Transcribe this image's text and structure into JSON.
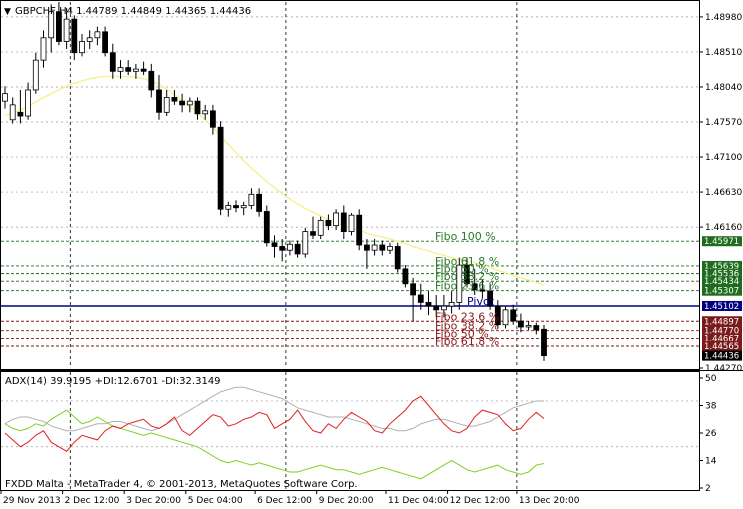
{
  "header": {
    "main_title": "GBPCHF,H4  1.44789 1.44849 1.44365 1.44436",
    "adx_title": "ADX(14) 39.9195 +DI:12.6701 -DI:32.3149",
    "footer_text": "FXDD Malta - MetaTrader 4, © 2001-2013, MetaQuotes Software Corp."
  },
  "colors": {
    "background": "#ffffff",
    "candle_up_fill": "#ffffff",
    "candle_down_fill": "#000000",
    "candle_outline": "#000000",
    "ma_line": "#f5f08a",
    "grid": "#9a9a9a",
    "fibo_green": "#1f6b1f",
    "fibo_red": "#7a1a1a",
    "pivot": "#000080",
    "current_price_box": "#000000",
    "adx_line": "#b0b0b0",
    "plus_di": "#7ed020",
    "minus_di": "#e02020"
  },
  "chart_data": [
    {
      "type": "candlestick",
      "title": "GBPCHF,H4",
      "ohlc_readout": {
        "open": 1.44789,
        "high": 1.44849,
        "low": 1.44365,
        "close": 1.44436
      },
      "x_tick_labels": [
        "29 Nov 2013",
        "2 Dec 12:00",
        "3 Dec 20:00",
        "5 Dec 04:00",
        "6 Dec 12:00",
        "9 Dec 20:00",
        "11 Dec 04:00",
        "12 Dec 12:00",
        "13 Dec 20:00"
      ],
      "y_ticks": [
        "1.48980",
        "1.48510",
        "1.48040",
        "1.47570",
        "1.47100",
        "1.46630",
        "1.46160",
        "1.44270"
      ],
      "ylim": [
        1.4427,
        1.4918
      ],
      "grid": true,
      "candles": [
        {
          "o": 1.4785,
          "h": 1.4805,
          "l": 1.4775,
          "c": 1.4795
        },
        {
          "o": 1.476,
          "h": 1.479,
          "l": 1.4755,
          "c": 1.478
        },
        {
          "o": 1.477,
          "h": 1.48,
          "l": 1.4755,
          "c": 1.4765
        },
        {
          "o": 1.4765,
          "h": 1.481,
          "l": 1.476,
          "c": 1.48
        },
        {
          "o": 1.48,
          "h": 1.485,
          "l": 1.4795,
          "c": 1.484
        },
        {
          "o": 1.484,
          "h": 1.488,
          "l": 1.483,
          "c": 1.487
        },
        {
          "o": 1.487,
          "h": 1.4915,
          "l": 1.485,
          "c": 1.4905
        },
        {
          "o": 1.4905,
          "h": 1.4918,
          "l": 1.486,
          "c": 1.4865
        },
        {
          "o": 1.4865,
          "h": 1.491,
          "l": 1.4855,
          "c": 1.4895
        },
        {
          "o": 1.4895,
          "h": 1.49,
          "l": 1.484,
          "c": 1.485
        },
        {
          "o": 1.485,
          "h": 1.4875,
          "l": 1.4845,
          "c": 1.4865
        },
        {
          "o": 1.4865,
          "h": 1.488,
          "l": 1.4855,
          "c": 1.487
        },
        {
          "o": 1.487,
          "h": 1.4885,
          "l": 1.486,
          "c": 1.4878
        },
        {
          "o": 1.4878,
          "h": 1.4885,
          "l": 1.4845,
          "c": 1.485
        },
        {
          "o": 1.485,
          "h": 1.4862,
          "l": 1.4815,
          "c": 1.4825
        },
        {
          "o": 1.4825,
          "h": 1.484,
          "l": 1.4815,
          "c": 1.483
        },
        {
          "o": 1.483,
          "h": 1.484,
          "l": 1.482,
          "c": 1.4825
        },
        {
          "o": 1.4825,
          "h": 1.4835,
          "l": 1.4815,
          "c": 1.4828
        },
        {
          "o": 1.4828,
          "h": 1.4838,
          "l": 1.482,
          "c": 1.4825
        },
        {
          "o": 1.4825,
          "h": 1.4835,
          "l": 1.479,
          "c": 1.48
        },
        {
          "o": 1.48,
          "h": 1.482,
          "l": 1.476,
          "c": 1.477
        },
        {
          "o": 1.477,
          "h": 1.48,
          "l": 1.4765,
          "c": 1.479
        },
        {
          "o": 1.479,
          "h": 1.48,
          "l": 1.478,
          "c": 1.4785
        },
        {
          "o": 1.4785,
          "h": 1.4795,
          "l": 1.477,
          "c": 1.478
        },
        {
          "o": 1.478,
          "h": 1.479,
          "l": 1.477,
          "c": 1.4785
        },
        {
          "o": 1.4785,
          "h": 1.479,
          "l": 1.476,
          "c": 1.4768
        },
        {
          "o": 1.4768,
          "h": 1.478,
          "l": 1.476,
          "c": 1.4772
        },
        {
          "o": 1.4772,
          "h": 1.478,
          "l": 1.474,
          "c": 1.475
        },
        {
          "o": 1.475,
          "h": 1.4758,
          "l": 1.4632,
          "c": 1.464
        },
        {
          "o": 1.464,
          "h": 1.465,
          "l": 1.463,
          "c": 1.4645
        },
        {
          "o": 1.4645,
          "h": 1.4652,
          "l": 1.4636,
          "c": 1.4642
        },
        {
          "o": 1.4642,
          "h": 1.465,
          "l": 1.4632,
          "c": 1.4645
        },
        {
          "o": 1.4645,
          "h": 1.4668,
          "l": 1.464,
          "c": 1.466
        },
        {
          "o": 1.466,
          "h": 1.4668,
          "l": 1.463,
          "c": 1.4637
        },
        {
          "o": 1.4637,
          "h": 1.4645,
          "l": 1.459,
          "c": 1.4595
        },
        {
          "o": 1.4595,
          "h": 1.4605,
          "l": 1.4575,
          "c": 1.459
        },
        {
          "o": 1.459,
          "h": 1.46,
          "l": 1.457,
          "c": 1.4585
        },
        {
          "o": 1.4585,
          "h": 1.4598,
          "l": 1.4578,
          "c": 1.4593
        },
        {
          "o": 1.4593,
          "h": 1.4598,
          "l": 1.4575,
          "c": 1.458
        },
        {
          "o": 1.458,
          "h": 1.4615,
          "l": 1.4575,
          "c": 1.461
        },
        {
          "o": 1.461,
          "h": 1.463,
          "l": 1.46,
          "c": 1.4605
        },
        {
          "o": 1.4605,
          "h": 1.463,
          "l": 1.46,
          "c": 1.4625
        },
        {
          "o": 1.4625,
          "h": 1.4633,
          "l": 1.4612,
          "c": 1.4618
        },
        {
          "o": 1.4618,
          "h": 1.464,
          "l": 1.4612,
          "c": 1.4635
        },
        {
          "o": 1.4635,
          "h": 1.4645,
          "l": 1.46,
          "c": 1.461
        },
        {
          "o": 1.461,
          "h": 1.4635,
          "l": 1.4605,
          "c": 1.4632
        },
        {
          "o": 1.4632,
          "h": 1.464,
          "l": 1.4585,
          "c": 1.4592
        },
        {
          "o": 1.4592,
          "h": 1.46,
          "l": 1.456,
          "c": 1.4585
        },
        {
          "o": 1.4585,
          "h": 1.46,
          "l": 1.4578,
          "c": 1.4592
        },
        {
          "o": 1.4592,
          "h": 1.4598,
          "l": 1.4578,
          "c": 1.4585
        },
        {
          "o": 1.4585,
          "h": 1.4595,
          "l": 1.458,
          "c": 1.459
        },
        {
          "o": 1.459,
          "h": 1.4595,
          "l": 1.4555,
          "c": 1.456
        },
        {
          "o": 1.456,
          "h": 1.4565,
          "l": 1.4535,
          "c": 1.454
        },
        {
          "o": 1.454,
          "h": 1.4548,
          "l": 1.449,
          "c": 1.4525
        },
        {
          "o": 1.4525,
          "h": 1.454,
          "l": 1.4505,
          "c": 1.4515
        },
        {
          "o": 1.4515,
          "h": 1.453,
          "l": 1.4498,
          "c": 1.451
        },
        {
          "o": 1.451,
          "h": 1.4525,
          "l": 1.4495,
          "c": 1.4505
        },
        {
          "o": 1.4505,
          "h": 1.4525,
          "l": 1.4495,
          "c": 1.451
        },
        {
          "o": 1.451,
          "h": 1.453,
          "l": 1.45,
          "c": 1.4515
        },
        {
          "o": 1.4515,
          "h": 1.4575,
          "l": 1.4505,
          "c": 1.4565
        },
        {
          "o": 1.4565,
          "h": 1.4575,
          "l": 1.4535,
          "c": 1.454
        },
        {
          "o": 1.454,
          "h": 1.456,
          "l": 1.4525,
          "c": 1.4532
        },
        {
          "o": 1.4532,
          "h": 1.4545,
          "l": 1.452,
          "c": 1.453
        },
        {
          "o": 1.453,
          "h": 1.454,
          "l": 1.4505,
          "c": 1.451
        },
        {
          "o": 1.451,
          "h": 1.4518,
          "l": 1.448,
          "c": 1.4485
        },
        {
          "o": 1.4485,
          "h": 1.451,
          "l": 1.448,
          "c": 1.4505
        },
        {
          "o": 1.4505,
          "h": 1.4512,
          "l": 1.4485,
          "c": 1.449
        },
        {
          "o": 1.449,
          "h": 1.45,
          "l": 1.4475,
          "c": 1.4482
        },
        {
          "o": 1.4482,
          "h": 1.449,
          "l": 1.4478,
          "c": 1.4484
        },
        {
          "o": 1.4484,
          "h": 1.4488,
          "l": 1.4472,
          "c": 1.4478
        },
        {
          "o": 1.44789,
          "h": 1.44849,
          "l": 1.44365,
          "c": 1.44436
        }
      ],
      "moving_average": [
        1.4766,
        1.4769,
        1.4773,
        1.4778,
        1.4784,
        1.479,
        1.4795,
        1.48,
        1.4805,
        1.4809,
        1.4812,
        1.4815,
        1.4817,
        1.4818,
        1.4818,
        1.4818,
        1.4818,
        1.4817,
        1.4815,
        1.4812,
        1.4807,
        1.4801,
        1.4794,
        1.4786,
        1.4778,
        1.4769,
        1.476,
        1.475,
        1.4738,
        1.4727,
        1.4716,
        1.4705,
        1.4695,
        1.4686,
        1.4677,
        1.4669,
        1.4661,
        1.4654,
        1.4647,
        1.4641,
        1.4636,
        1.4631,
        1.4626,
        1.4622,
        1.4618,
        1.4615,
        1.4612,
        1.4608,
        1.4605,
        1.4603,
        1.46,
        1.4597,
        1.4594,
        1.459,
        1.4587,
        1.4584,
        1.4581,
        1.4578,
        1.4575,
        1.4573,
        1.457,
        1.4568,
        1.4565,
        1.4562,
        1.4558,
        1.4555,
        1.4551,
        1.4548,
        1.4545,
        1.4542,
        1.4538
      ],
      "levels": [
        {
          "label": "Fibo 100 %",
          "value": 1.45971,
          "price_label": "1.45971",
          "kind": "fibo_up"
        },
        {
          "label": "Fibo 61.8 %",
          "value": 1.45639,
          "price_label": "1.45639",
          "kind": "fibo_up"
        },
        {
          "label": "Fibo 50 %",
          "value": 1.45536,
          "price_label": "1.45536",
          "kind": "fibo_up"
        },
        {
          "label": "Fibo 38.2 %",
          "value": 1.45434,
          "price_label": "1.45434",
          "kind": "fibo_up"
        },
        {
          "label": "Fibo 23.6 %",
          "value": 1.45307,
          "price_label": "1.45307",
          "kind": "fibo_up"
        },
        {
          "label": "Pivot",
          "value": 1.45102,
          "price_label": "1.45102",
          "kind": "pivot"
        },
        {
          "label": "Fibo 23.6 %",
          "value": 1.44897,
          "price_label": "1.44897",
          "kind": "fibo_down"
        },
        {
          "label": "Fibo 38.2 %",
          "value": 1.4477,
          "price_label": "1.44770",
          "kind": "fibo_down"
        },
        {
          "label": "Fibo 50 %",
          "value": 1.44667,
          "price_label": "1.44667",
          "kind": "fibo_down"
        },
        {
          "label": "Fibo 61.8 %",
          "value": 1.44565,
          "price_label": "1.44565",
          "kind": "fibo_down"
        }
      ],
      "current_price": {
        "value": 1.44436,
        "label": "1.44436"
      }
    },
    {
      "type": "line",
      "title": "ADX(14)",
      "ylim": [
        2,
        50
      ],
      "y_ticks": [
        "50",
        "38",
        "26",
        "14",
        "2"
      ],
      "series": [
        {
          "name": "ADX",
          "values": [
            30,
            32,
            33,
            33,
            32,
            31,
            29,
            28,
            27,
            27,
            28,
            29,
            30,
            30,
            31,
            31,
            30,
            29,
            28,
            27,
            28,
            30,
            32,
            34,
            36,
            38,
            40,
            42,
            44,
            45,
            46,
            46,
            45,
            44,
            43,
            42,
            41,
            39,
            37,
            36,
            35,
            34,
            33,
            33,
            33,
            32,
            31,
            30,
            29,
            28,
            28,
            27,
            27,
            28,
            30,
            31,
            32,
            32,
            31,
            30,
            29,
            29,
            30,
            31,
            33,
            35,
            37,
            38,
            39,
            40,
            39.9195
          ]
        },
        {
          "name": "+DI",
          "values": [
            30,
            28,
            27,
            28,
            30,
            29,
            32,
            34,
            36,
            33,
            30,
            31,
            33,
            31,
            29,
            28,
            27,
            26,
            25,
            26,
            25,
            24,
            23,
            22,
            21,
            20,
            18,
            16,
            14,
            13,
            14,
            13,
            12,
            13,
            12,
            11,
            10,
            9,
            9,
            10,
            11,
            12,
            11,
            10,
            10,
            9,
            8,
            9,
            10,
            11,
            10,
            9,
            8,
            7,
            6,
            8,
            10,
            12,
            14,
            12,
            10,
            9,
            10,
            11,
            12,
            10,
            9,
            8,
            9,
            12,
            12.6701
          ]
        },
        {
          "name": "-DI",
          "values": [
            26,
            23,
            20,
            22,
            25,
            27,
            22,
            20,
            18,
            22,
            25,
            24,
            23,
            27,
            29,
            28,
            30,
            31,
            32,
            29,
            28,
            30,
            33,
            27,
            25,
            28,
            31,
            34,
            33,
            29,
            30,
            32,
            33,
            35,
            34,
            28,
            30,
            32,
            36,
            31,
            27,
            26,
            30,
            28,
            32,
            35,
            33,
            31,
            27,
            26,
            30,
            33,
            36,
            40,
            42,
            38,
            34,
            30,
            27,
            26,
            28,
            33,
            36,
            35,
            34,
            30,
            27,
            28,
            32,
            35,
            32.3149
          ]
        }
      ]
    }
  ]
}
